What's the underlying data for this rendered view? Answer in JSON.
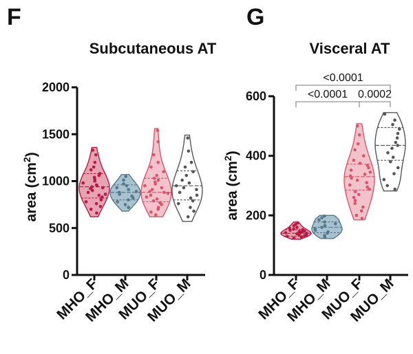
{
  "panels": [
    {
      "letter": "F"
    },
    {
      "letter": "G"
    }
  ],
  "chart_data": [
    {
      "type": "violin",
      "title": "Subcutaneous AT",
      "ylabel": "area (cm2)",
      "ylim": [
        0,
        2000
      ],
      "yticks": [
        0,
        500,
        1000,
        1500,
        2000
      ],
      "categories": [
        "MHO_F",
        "MHO_M",
        "MUO_F",
        "MUO_M"
      ],
      "groups": [
        {
          "name": "MHO_F",
          "color": "#b51b43",
          "fill": "#e8a3b3",
          "min": 620,
          "max": 1360,
          "q1": 820,
          "median": 940,
          "q3": 1080,
          "points": [
            1330,
            1280,
            1200,
            1150,
            1120,
            1080,
            1060,
            1040,
            1020,
            1000,
            980,
            960,
            950,
            940,
            930,
            920,
            900,
            880,
            860,
            850,
            830,
            800,
            780,
            760,
            730,
            700,
            660
          ]
        },
        {
          "name": "MHO_M",
          "color": "#56788c",
          "fill": "#a9c2cf",
          "min": 680,
          "max": 1070,
          "q1": 800,
          "median": 880,
          "q3": 960,
          "points": [
            1050,
            1010,
            970,
            950,
            930,
            910,
            890,
            880,
            860,
            840,
            820,
            800,
            780,
            750,
            720
          ]
        },
        {
          "name": "MUO_F",
          "color": "#d9556b",
          "fill": "#f4c2cb",
          "min": 620,
          "max": 1560,
          "q1": 780,
          "median": 880,
          "q3": 1030,
          "points": [
            1540,
            1420,
            1280,
            1200,
            1150,
            1100,
            1060,
            1030,
            1010,
            990,
            970,
            950,
            930,
            910,
            890,
            880,
            870,
            850,
            830,
            810,
            790,
            770,
            750,
            720,
            700,
            670,
            640
          ]
        },
        {
          "name": "MUO_M",
          "color": "#555555",
          "fill": "#ffffff",
          "min": 570,
          "max": 1490,
          "q1": 800,
          "median": 950,
          "q3": 1110,
          "points": [
            1460,
            1320,
            1200,
            1150,
            1100,
            1060,
            1010,
            980,
            950,
            930,
            910,
            880,
            850,
            820,
            790,
            760,
            720,
            680,
            620
          ]
        }
      ]
    },
    {
      "type": "violin",
      "title": "Visceral AT",
      "ylabel": "area (cm2)",
      "ylim": [
        0,
        600
      ],
      "yticks": [
        0,
        200,
        400,
        600
      ],
      "categories": [
        "MHO_F",
        "MHO_M",
        "MUO_F",
        "MUO_M"
      ],
      "groups": [
        {
          "name": "MHO_F",
          "color": "#b51b43",
          "fill": "#e8a3b3",
          "min": 120,
          "max": 178,
          "q1": 130,
          "median": 140,
          "q3": 152,
          "points": [
            175,
            170,
            165,
            160,
            157,
            154,
            152,
            150,
            148,
            146,
            144,
            142,
            141,
            140,
            139,
            138,
            137,
            135,
            134,
            132,
            130,
            128,
            126,
            124
          ]
        },
        {
          "name": "MHO_M",
          "color": "#56788c",
          "fill": "#a9c2cf",
          "min": 122,
          "max": 200,
          "q1": 142,
          "median": 160,
          "q3": 178,
          "points": [
            198,
            192,
            185,
            178,
            172,
            166,
            160,
            155,
            150,
            145,
            140,
            132,
            126
          ]
        },
        {
          "name": "MUO_F",
          "color": "#d9556b",
          "fill": "#f4c2cb",
          "min": 185,
          "max": 508,
          "q1": 285,
          "median": 330,
          "q3": 372,
          "points": [
            500,
            470,
            440,
            420,
            400,
            385,
            375,
            368,
            360,
            352,
            345,
            338,
            332,
            325,
            318,
            310,
            302,
            295,
            288,
            280,
            270,
            260,
            250,
            240,
            228,
            215,
            200,
            190
          ]
        },
        {
          "name": "MUO_M",
          "color": "#555555",
          "fill": "#ffffff",
          "min": 282,
          "max": 545,
          "q1": 385,
          "median": 435,
          "q3": 495,
          "points": [
            540,
            520,
            505,
            490,
            475,
            460,
            445,
            435,
            425,
            410,
            395,
            380,
            360,
            340,
            320,
            300,
            288
          ]
        }
      ],
      "comparisons": [
        {
          "from": 0,
          "to": 2,
          "label": "<0.0001"
        },
        {
          "from": 0,
          "to": 3,
          "label": "<0.0001"
        },
        {
          "from": 2,
          "to": 3,
          "label": "0.0002"
        }
      ]
    }
  ]
}
